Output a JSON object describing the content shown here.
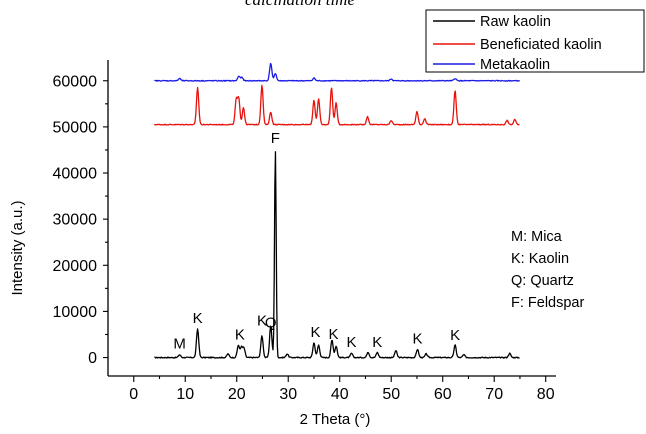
{
  "top_caption": "calcination time",
  "chart_data": {
    "type": "line",
    "xlabel": "2 Theta (°)",
    "ylabel": "Intensity (a.u.)",
    "xlim": [
      -5,
      82
    ],
    "ylim": [
      -4000,
      64500
    ],
    "xticks": [
      0,
      10,
      20,
      30,
      40,
      50,
      60,
      70,
      80
    ],
    "yticks": [
      0,
      10000,
      20000,
      30000,
      40000,
      50000,
      60000
    ],
    "xtick_labels": [
      "0",
      "10",
      "20",
      "30",
      "40",
      "50",
      "60",
      "70",
      "80"
    ],
    "ytick_labels": [
      "0",
      "10000",
      "20000",
      "30000",
      "40000",
      "50000",
      "60000"
    ],
    "legend_position": "top-right",
    "series": [
      {
        "name": "Raw kaolin",
        "color": "#000000",
        "x_range": [
          4,
          75
        ],
        "baseline": 0,
        "peaks": [
          {
            "x": 8.9,
            "y": 600
          },
          {
            "x": 12.4,
            "y": 6200
          },
          {
            "x": 18.3,
            "y": 800
          },
          {
            "x": 20.3,
            "y": 2600
          },
          {
            "x": 20.9,
            "y": 2200
          },
          {
            "x": 21.4,
            "y": 2000
          },
          {
            "x": 24.9,
            "y": 4700
          },
          {
            "x": 26.6,
            "y": 7000
          },
          {
            "x": 27.5,
            "y": 45000
          },
          {
            "x": 29.8,
            "y": 800
          },
          {
            "x": 35.0,
            "y": 3200
          },
          {
            "x": 35.9,
            "y": 2700
          },
          {
            "x": 38.5,
            "y": 3800
          },
          {
            "x": 39.3,
            "y": 2500
          },
          {
            "x": 42.3,
            "y": 900
          },
          {
            "x": 45.5,
            "y": 1200
          },
          {
            "x": 47.3,
            "y": 1100
          },
          {
            "x": 50.9,
            "y": 1500
          },
          {
            "x": 55.1,
            "y": 1800
          },
          {
            "x": 56.8,
            "y": 800
          },
          {
            "x": 62.4,
            "y": 2700
          },
          {
            "x": 64.1,
            "y": 600
          },
          {
            "x": 73.0,
            "y": 900
          }
        ]
      },
      {
        "name": "Beneficiated kaolin",
        "color": "#e8120c",
        "x_range": [
          4,
          75
        ],
        "baseline": 50500,
        "peaks": [
          {
            "x": 12.4,
            "y": 58500
          },
          {
            "x": 19.9,
            "y": 55800
          },
          {
            "x": 20.4,
            "y": 56000
          },
          {
            "x": 21.3,
            "y": 54200
          },
          {
            "x": 24.9,
            "y": 59000
          },
          {
            "x": 26.6,
            "y": 53200
          },
          {
            "x": 35.0,
            "y": 55800
          },
          {
            "x": 35.9,
            "y": 56000
          },
          {
            "x": 38.4,
            "y": 58500
          },
          {
            "x": 39.3,
            "y": 55200
          },
          {
            "x": 45.4,
            "y": 52200
          },
          {
            "x": 50.0,
            "y": 51400
          },
          {
            "x": 55.0,
            "y": 53300
          },
          {
            "x": 56.5,
            "y": 51800
          },
          {
            "x": 62.4,
            "y": 57800
          },
          {
            "x": 72.5,
            "y": 51400
          },
          {
            "x": 74.0,
            "y": 51600
          }
        ]
      },
      {
        "name": "Metakaolin",
        "color": "#1a1ae6",
        "x_range": [
          4,
          75
        ],
        "baseline": 60000,
        "peaks": [
          {
            "x": 8.9,
            "y": 60500
          },
          {
            "x": 20.4,
            "y": 61000
          },
          {
            "x": 21.0,
            "y": 60700
          },
          {
            "x": 26.6,
            "y": 63800
          },
          {
            "x": 27.5,
            "y": 61600
          },
          {
            "x": 35.0,
            "y": 60600
          },
          {
            "x": 50.0,
            "y": 60400
          },
          {
            "x": 62.4,
            "y": 60500
          }
        ]
      }
    ],
    "peak_labels": [
      {
        "text": "M",
        "x": 8.9,
        "y": 2000
      },
      {
        "text": "K",
        "x": 12.4,
        "y": 7500
      },
      {
        "text": "K",
        "x": 20.6,
        "y": 3900
      },
      {
        "text": "K",
        "x": 24.9,
        "y": 7000
      },
      {
        "text": "Q",
        "x": 26.6,
        "y": 6500
      },
      {
        "text": "F",
        "x": 27.5,
        "y": 46500
      },
      {
        "text": "K",
        "x": 35.3,
        "y": 4500
      },
      {
        "text": "K",
        "x": 38.8,
        "y": 4000
      },
      {
        "text": "K",
        "x": 42.3,
        "y": 2300
      },
      {
        "text": "K",
        "x": 47.3,
        "y": 2300
      },
      {
        "text": "K",
        "x": 55.1,
        "y": 3000
      },
      {
        "text": "K",
        "x": 62.4,
        "y": 3800
      }
    ],
    "annotations": [
      "M: Mica",
      "K: Kaolin",
      "Q: Quartz",
      "F: Feldspar"
    ]
  }
}
